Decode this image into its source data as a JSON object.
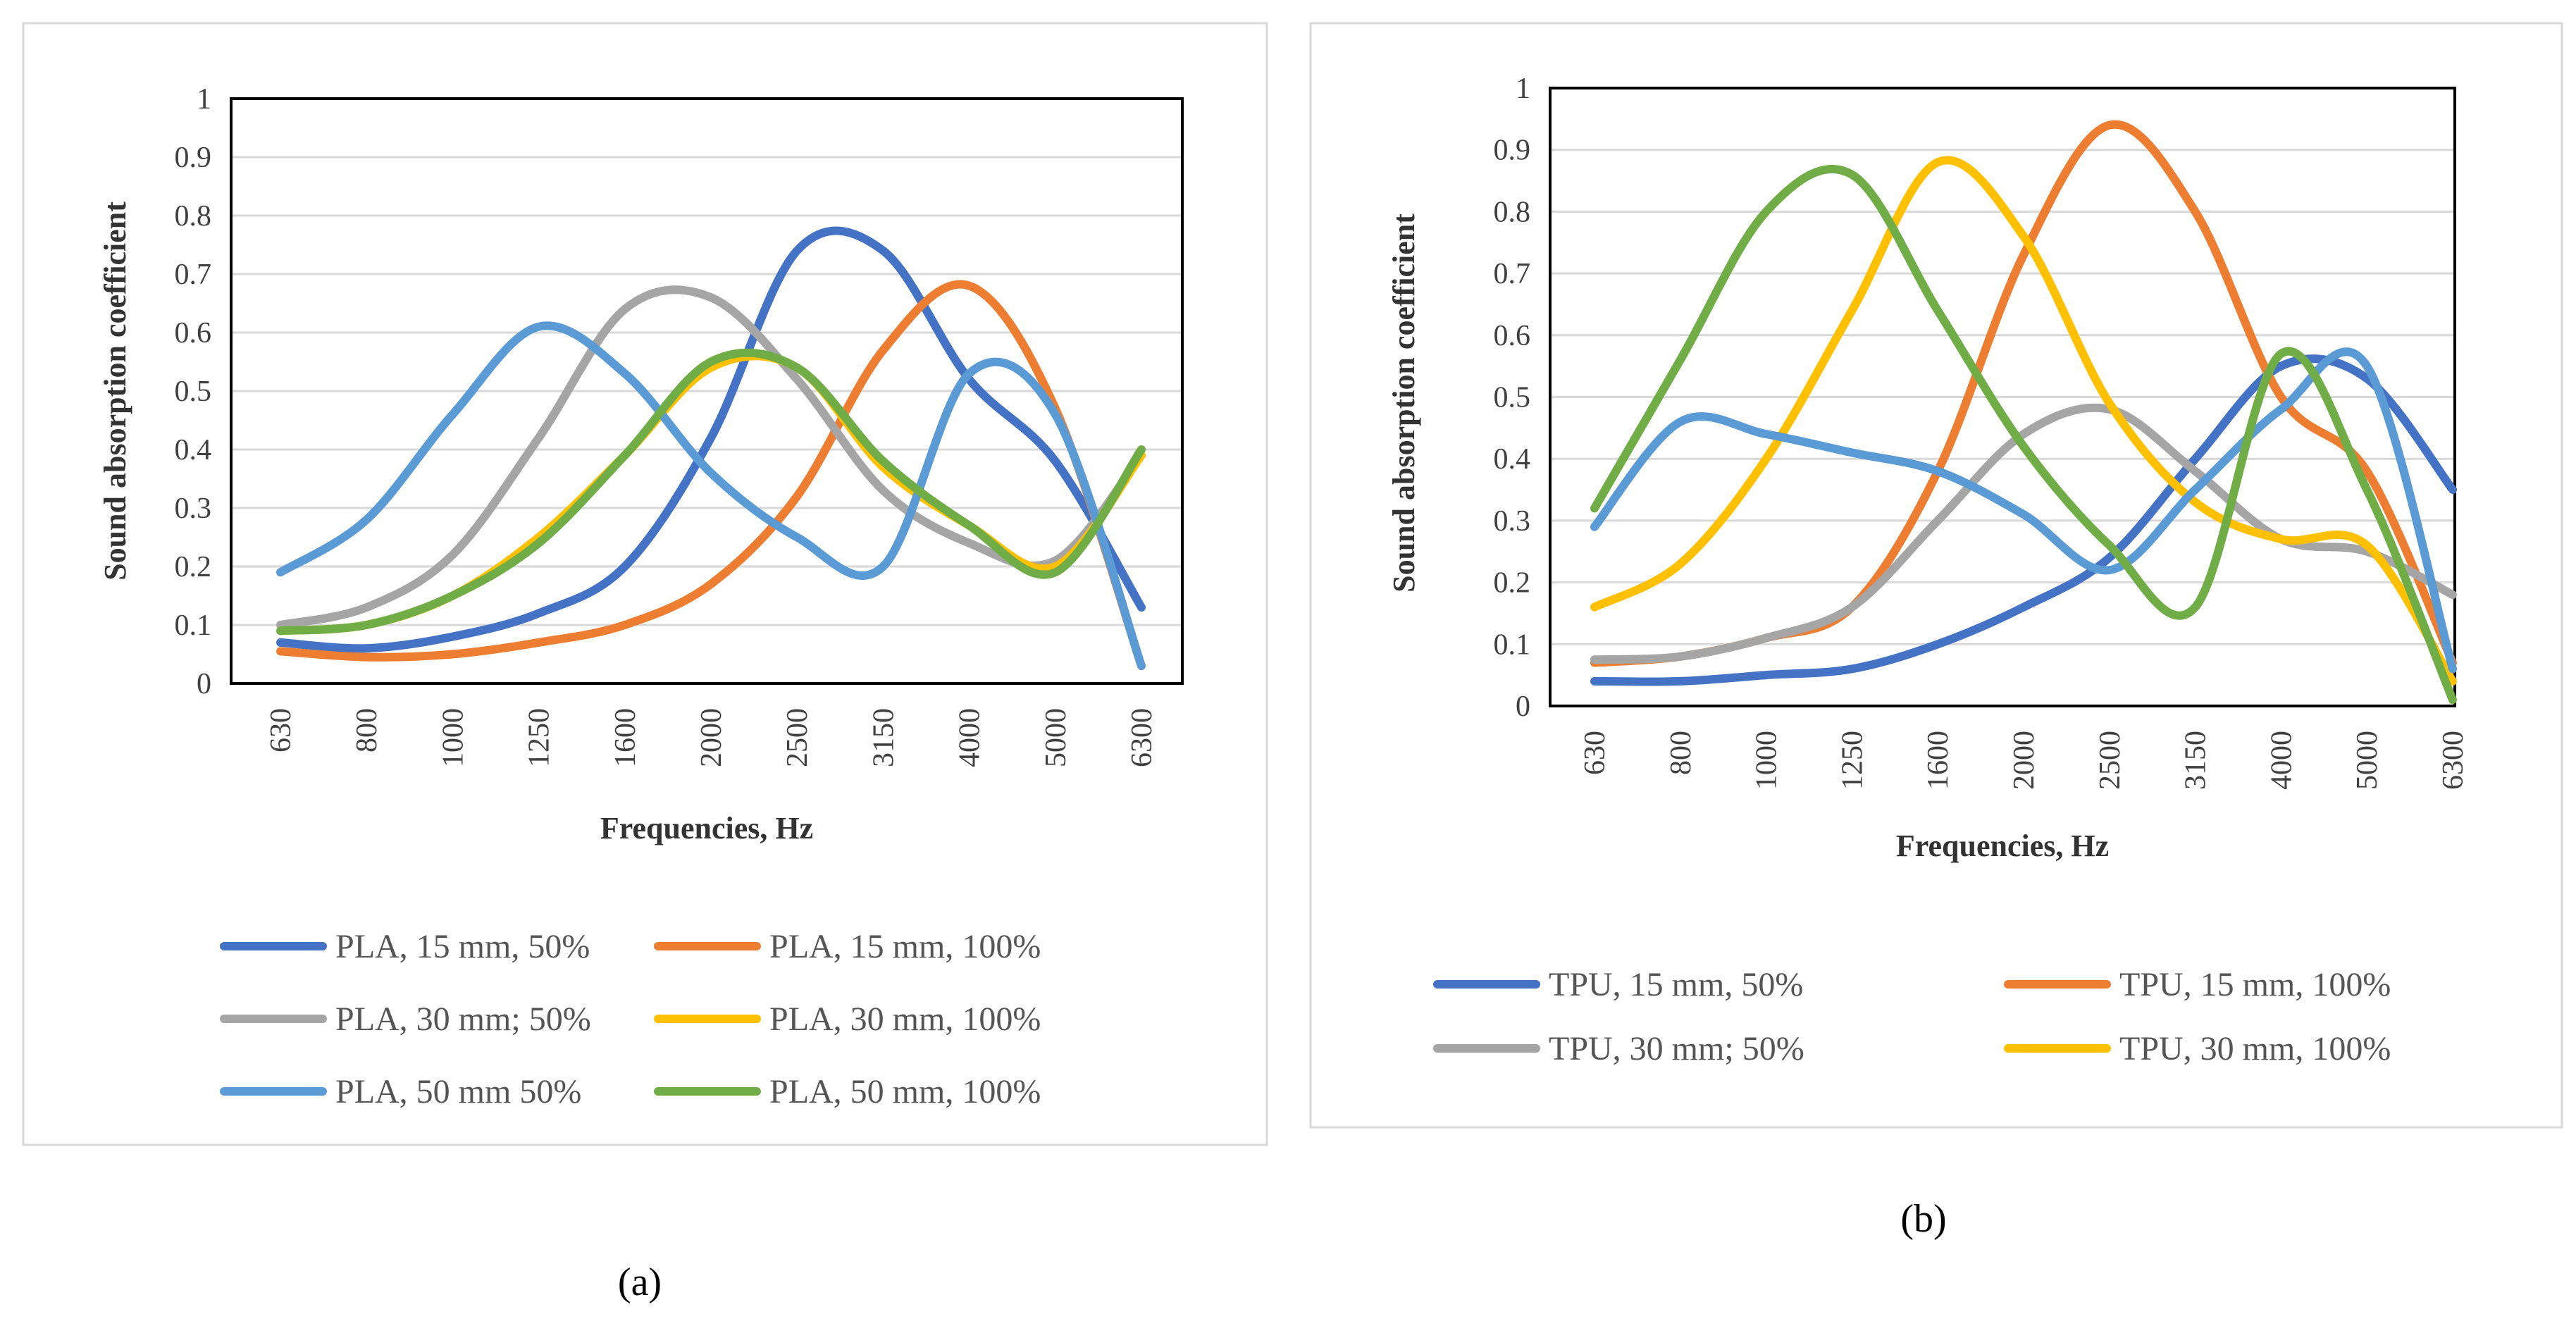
{
  "chart_data": [
    {
      "type": "line",
      "caption": "(a)",
      "xlabel": "Frequencies, Hz",
      "ylabel": "Sound absorption coefficient",
      "ylim": [
        0,
        1
      ],
      "yticks": [
        "0",
        "0.1",
        "0.2",
        "0.3",
        "0.4",
        "0.5",
        "0.6",
        "0.7",
        "0.8",
        "0.9",
        "1"
      ],
      "categories": [
        "630",
        "800",
        "1000",
        "1250",
        "1600",
        "2000",
        "2500",
        "3150",
        "4000",
        "5000",
        "6300"
      ],
      "grid": true,
      "legend_position": "bottom",
      "series": [
        {
          "name": "PLA, 15 mm, 50%",
          "color": "#4472C4",
          "values": [
            0.07,
            0.06,
            0.08,
            0.12,
            0.2,
            0.42,
            0.74,
            0.74,
            0.52,
            0.38,
            0.13
          ]
        },
        {
          "name": "PLA, 15 mm, 100%",
          "color": "#ED7D31",
          "values": [
            0.055,
            0.045,
            0.05,
            0.07,
            0.1,
            0.17,
            0.32,
            0.57,
            0.68,
            0.47,
            0.03
          ]
        },
        {
          "name": "PLA, 30 mm; 50%",
          "color": "#A5A5A5",
          "values": [
            0.1,
            0.13,
            0.22,
            0.42,
            0.64,
            0.66,
            0.52,
            0.33,
            0.24,
            0.21,
            0.39
          ]
        },
        {
          "name": "PLA, 30 mm, 100%",
          "color": "#FFC000",
          "values": [
            0.09,
            0.1,
            0.15,
            0.25,
            0.39,
            0.54,
            0.54,
            0.37,
            0.27,
            0.2,
            0.39
          ]
        },
        {
          "name": "PLA, 50 mm 50%",
          "color": "#5B9BD5",
          "values": [
            0.19,
            0.28,
            0.46,
            0.61,
            0.53,
            0.36,
            0.25,
            0.2,
            0.53,
            0.46,
            0.03
          ]
        },
        {
          "name": "PLA, 50 mm, 100%",
          "color": "#70AD47",
          "values": [
            0.09,
            0.1,
            0.15,
            0.24,
            0.39,
            0.55,
            0.54,
            0.38,
            0.27,
            0.19,
            0.4
          ]
        }
      ]
    },
    {
      "type": "line",
      "caption": "(b)",
      "xlabel": "Frequencies, Hz",
      "ylabel": "Sound absorption coefficient",
      "ylim": [
        0,
        1
      ],
      "yticks": [
        "0",
        "0.1",
        "0.2",
        "0.3",
        "0.4",
        "0.5",
        "0.6",
        "0.7",
        "0.8",
        "0.9",
        "1"
      ],
      "categories": [
        "630",
        "800",
        "1000",
        "1250",
        "1600",
        "2000",
        "2500",
        "3150",
        "4000",
        "5000",
        "6300"
      ],
      "grid": true,
      "legend_position": "bottom",
      "legend": [
        "TPU, 15 mm, 50%",
        "TPU, 15 mm, 100%",
        "TPU, 30 mm; 50%",
        "TPU, 30 mm, 100%"
      ],
      "series": [
        {
          "name": "TPU, 15 mm, 50%",
          "color": "#4472C4",
          "values": [
            0.04,
            0.04,
            0.05,
            0.06,
            0.1,
            0.16,
            0.24,
            0.4,
            0.55,
            0.53,
            0.35
          ]
        },
        {
          "name": "TPU, 15 mm, 100%",
          "color": "#ED7D31",
          "values": [
            0.07,
            0.08,
            0.11,
            0.16,
            0.38,
            0.73,
            0.94,
            0.8,
            0.5,
            0.38,
            0.07
          ]
        },
        {
          "name": "TPU, 30 mm; 50%",
          "color": "#A5A5A5",
          "values": [
            0.075,
            0.08,
            0.11,
            0.16,
            0.3,
            0.44,
            0.48,
            0.38,
            0.27,
            0.25,
            0.18
          ]
        },
        {
          "name": "TPU, 30 mm, 100%",
          "color": "#FFC000",
          "values": [
            0.16,
            0.23,
            0.4,
            0.64,
            0.88,
            0.76,
            0.49,
            0.33,
            0.27,
            0.26,
            0.04
          ]
        },
        {
          "name": "",
          "color": "#5B9BD5",
          "values": [
            0.29,
            0.46,
            0.44,
            0.41,
            0.38,
            0.31,
            0.22,
            0.35,
            0.48,
            0.55,
            0.06
          ]
        },
        {
          "name": "",
          "color": "#70AD47",
          "values": [
            0.32,
            0.56,
            0.8,
            0.86,
            0.64,
            0.42,
            0.26,
            0.16,
            0.57,
            0.35,
            0.01
          ]
        }
      ]
    }
  ]
}
